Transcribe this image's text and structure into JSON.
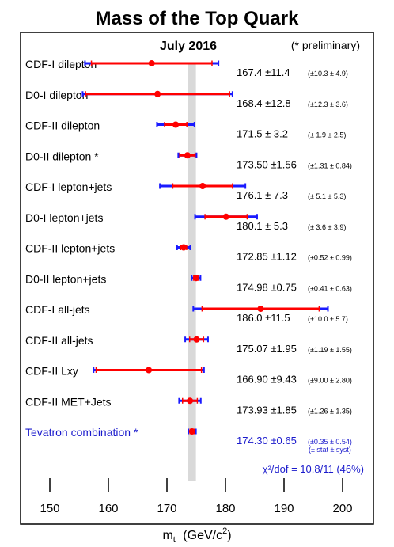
{
  "chart_data": {
    "type": "scatter",
    "title": "Mass of the Top Quark",
    "subtitle": "July 2016",
    "note": "(* preliminary)",
    "xlabel_main": "m",
    "xlabel_sub": "t",
    "xlabel_unit": "(GeV/c",
    "xlabel_sup": "2",
    "xlabel_close": ")",
    "xlim": [
      143,
      205
    ],
    "xticks": [
      150,
      160,
      170,
      180,
      190,
      200
    ],
    "band": [
      173.65,
      174.95
    ],
    "colors": {
      "stat": "#ff0000",
      "total": "#1a1aff",
      "point": "#ff0000",
      "combo": "#1a1acc",
      "band": "#d9d9d9"
    },
    "rows": [
      {
        "label": "CDF-I dilepton",
        "value": 167.4,
        "total": 11.4,
        "stat": 10.3,
        "syst": 4.9,
        "value_text": "167.4 ±11.4",
        "err_text": "(±10.3 ±  4.9)"
      },
      {
        "label": "D0-I dilepton",
        "value": 168.4,
        "total": 12.8,
        "stat": 12.3,
        "syst": 3.6,
        "value_text": "168.4 ±12.8",
        "err_text": "(±12.3 ±  3.6)"
      },
      {
        "label": "CDF-II dilepton",
        "value": 171.5,
        "total": 3.2,
        "stat": 1.9,
        "syst": 2.5,
        "value_text": "171.5 ± 3.2",
        "err_text": "(± 1.9 ±  2.5)"
      },
      {
        "label": "D0-II dilepton *",
        "value": 173.5,
        "total": 1.56,
        "stat": 1.31,
        "syst": 0.84,
        "value_text": "173.50 ±1.56",
        "err_text": "(±1.31 ± 0.84)"
      },
      {
        "label": "CDF-I lepton+jets",
        "value": 176.1,
        "total": 7.3,
        "stat": 5.1,
        "syst": 5.3,
        "value_text": "176.1 ± 7.3",
        "err_text": "(± 5.1 ±  5.3)"
      },
      {
        "label": "D0-I lepton+jets",
        "value": 180.1,
        "total": 5.3,
        "stat": 3.6,
        "syst": 3.9,
        "value_text": "180.1 ± 5.3",
        "err_text": "(± 3.6 ±  3.9)"
      },
      {
        "label": "CDF-II lepton+jets",
        "value": 172.85,
        "total": 1.12,
        "stat": 0.52,
        "syst": 0.99,
        "value_text": "172.85 ±1.12",
        "err_text": "(±0.52 ± 0.99)"
      },
      {
        "label": "D0-II lepton+jets",
        "value": 174.98,
        "total": 0.75,
        "stat": 0.41,
        "syst": 0.63,
        "value_text": "174.98 ±0.75",
        "err_text": "(±0.41 ± 0.63)"
      },
      {
        "label": "CDF-I all-jets",
        "value": 186.0,
        "total": 11.5,
        "stat": 10.0,
        "syst": 5.7,
        "value_text": "186.0 ±11.5",
        "err_text": "(±10.0 ±  5.7)"
      },
      {
        "label": "CDF-II all-jets",
        "value": 175.07,
        "total": 1.95,
        "stat": 1.19,
        "syst": 1.55,
        "value_text": "175.07 ±1.95",
        "err_text": "(±1.19 ± 1.55)"
      },
      {
        "label": "CDF-II Lxy",
        "value": 166.9,
        "total": 9.43,
        "stat": 9.0,
        "syst": 2.8,
        "value_text": "166.90 ±9.43",
        "err_text": "(±9.00 ± 2.80)"
      },
      {
        "label": "CDF-II MET+Jets",
        "value": 173.93,
        "total": 1.85,
        "stat": 1.26,
        "syst": 1.35,
        "value_text": "173.93 ±1.85",
        "err_text": "(±1.26 ± 1.35)"
      },
      {
        "label": "Tevatron combination *",
        "value": 174.3,
        "total": 0.65,
        "stat": 0.35,
        "syst": 0.54,
        "value_text": "174.30 ±0.65",
        "err_text": "(±0.35 ± 0.54)",
        "combo": true
      }
    ],
    "combo_note": "(± stat  ± syst)",
    "chi2_text": "χ²/dof = 10.8/11 (46%)"
  }
}
